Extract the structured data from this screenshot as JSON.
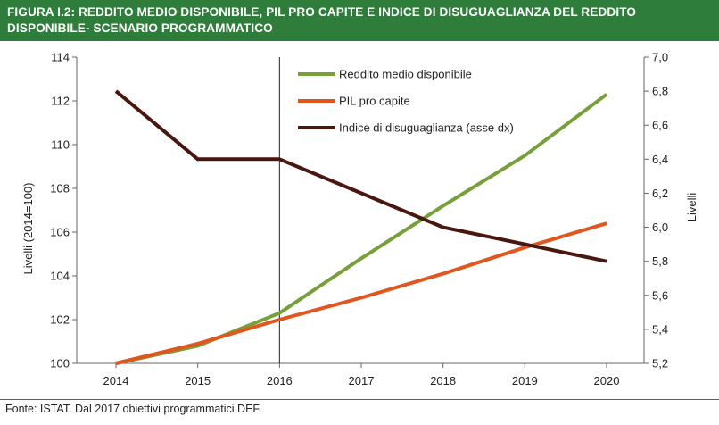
{
  "figure": {
    "title_line1": "FIGURA I.2: REDDITO MEDIO DISPONIBILE, PIL PRO CAPITE E INDICE DI DISUGUAGLIANZA DEL REDDITO",
    "title_line2": "DISPONIBILE- SCENARIO PROGRAMMATICO",
    "source": "Fonte: ISTAT. Dal 2017 obiettivi programmatici DEF."
  },
  "colors": {
    "title_bar": "#2e7d3b",
    "reddito": "#77a03a",
    "pil": "#e0561e",
    "indice": "#4a1610"
  },
  "chart_data": {
    "type": "line",
    "x": [
      "2014",
      "2015",
      "2016",
      "2017",
      "2018",
      "2019",
      "2020"
    ],
    "ylabel_left": "Livelli  (2014=100)",
    "ylabel_right": "Livelli",
    "ylim_left": [
      100,
      114
    ],
    "ylim_right": [
      5.2,
      7.0
    ],
    "yticks_left": [
      "100",
      "102",
      "104",
      "106",
      "108",
      "110",
      "112",
      "114"
    ],
    "yticks_right": [
      "5,2",
      "5,4",
      "5,6",
      "5,8",
      "6,0",
      "6,2",
      "6,4",
      "6,6",
      "6,8",
      "7,0"
    ],
    "vertical_marker_at": "2016",
    "series": [
      {
        "name": "Reddito medio disponibile",
        "axis": "left",
        "color": "#77a03a",
        "values": [
          100.0,
          100.8,
          102.3,
          104.8,
          107.2,
          109.5,
          112.3
        ]
      },
      {
        "name": "PIL pro capite",
        "axis": "left",
        "color": "#e0561e",
        "values": [
          100.0,
          100.9,
          102.0,
          103.0,
          104.1,
          105.3,
          106.4
        ]
      },
      {
        "name": "Indice di disuguaglianza (asse dx)",
        "axis": "right",
        "color": "#4a1610",
        "values": [
          6.8,
          6.4,
          6.4,
          6.2,
          6.0,
          5.9,
          5.8
        ]
      }
    ],
    "legend_position": "top-right"
  }
}
